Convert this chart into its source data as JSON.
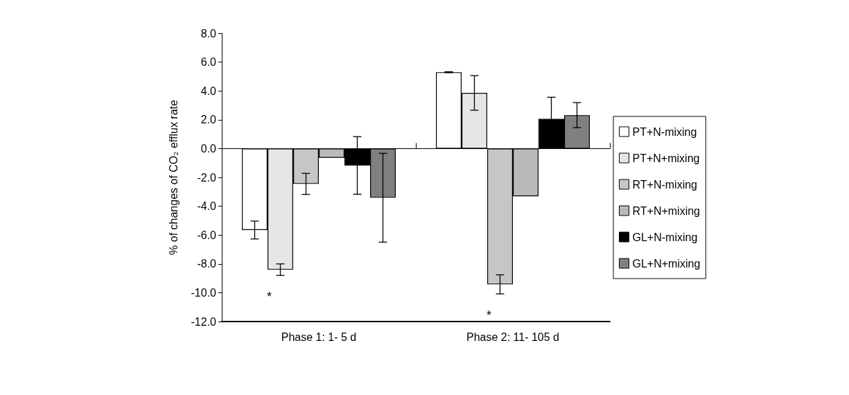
{
  "chart_data": {
    "type": "bar",
    "ylabel": "% of changes of CO₂ efflux rate",
    "categories": [
      "Phase 1: 1- 5 d",
      "Phase 2: 11- 105 d"
    ],
    "series": [
      {
        "name": "PT+N-mixing",
        "color": "#ffffff",
        "values": [
          -5.65,
          5.3
        ],
        "errors": [
          0.62,
          0.03
        ]
      },
      {
        "name": "PT+N+mixing",
        "color": "#e6e6e6",
        "values": [
          -8.4,
          3.86
        ],
        "errors": [
          0.4,
          1.2
        ]
      },
      {
        "name": "RT+N-mixing",
        "color": "#c6c6c6",
        "values": [
          -2.45,
          -9.42
        ],
        "errors": [
          0.73,
          0.66
        ]
      },
      {
        "name": "RT+N+mixing",
        "color": "#bababa",
        "values": [
          -0.64,
          -3.31
        ],
        "errors": [
          null,
          null
        ]
      },
      {
        "name": "GL+N-mixing",
        "color": "#000000",
        "values": [
          -1.17,
          2.06
        ],
        "errors": [
          2.0,
          1.5
        ]
      },
      {
        "name": "GL+N+mixing",
        "color": "#808080",
        "values": [
          -3.41,
          2.32
        ],
        "errors": [
          3.08,
          0.87
        ]
      }
    ],
    "ylim": [
      -12,
      8
    ],
    "yticks": [
      {
        "value": -12,
        "label": "-12.0"
      },
      {
        "value": -10,
        "label": "-10.0"
      },
      {
        "value": -8,
        "label": "-8.0"
      },
      {
        "value": -6,
        "label": "-6.0"
      },
      {
        "value": -4,
        "label": "-4.0"
      },
      {
        "value": -2,
        "label": "-2.0"
      },
      {
        "value": 0,
        "label": "0.0"
      },
      {
        "value": 2,
        "label": "2.0"
      },
      {
        "value": 4,
        "label": "4.0"
      },
      {
        "value": 6,
        "label": "6.0"
      },
      {
        "value": 8,
        "label": "8.0"
      }
    ],
    "annotations": [
      "*",
      "*"
    ],
    "legend": "right"
  }
}
